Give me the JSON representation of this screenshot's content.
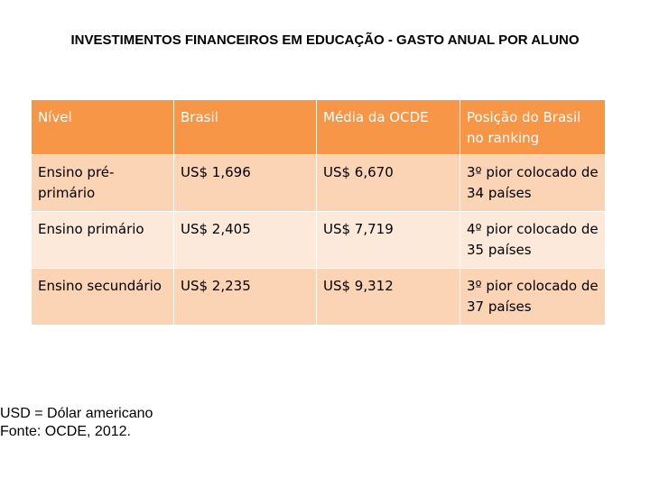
{
  "title": "INVESTIMENTOS FINANCEIROS EM EDUCAÇÃO - GASTO ANUAL POR ALUNO",
  "table": {
    "headers": [
      "Nível",
      "Brasil",
      "Média da OCDE",
      "Posição do Brasil no ranking"
    ],
    "rows": [
      [
        "Ensino pré-primário",
        "US$ 1,696",
        "US$ 6,670",
        "3º pior colocado de 34 países"
      ],
      [
        "Ensino primário",
        "US$ 2,405",
        "US$ 7,719",
        "4º pior colocado de 35 países"
      ],
      [
        "Ensino secundário",
        "US$ 2,235",
        "US$ 9,312",
        "3º pior colocado de 37 países"
      ]
    ]
  },
  "notes": {
    "line1": "USD = Dólar americano",
    "line2": "Fonte: OCDE, 2012."
  },
  "colors": {
    "header_bg": "#f79646",
    "row_dark": "#fbd3b5",
    "row_light": "#fde9da"
  }
}
